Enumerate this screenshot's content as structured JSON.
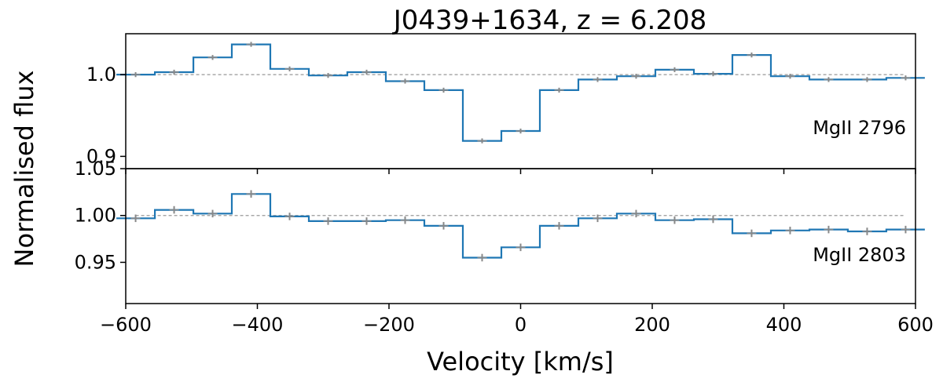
{
  "chart_data": {
    "type": "line",
    "title": "J0439+1634,   z = 6.208",
    "xlabel": "Velocity [km/s]",
    "ylabel": "Normalised flux",
    "xlim": [
      -600,
      600
    ],
    "x_ticks": [
      -600,
      -400,
      -200,
      0,
      200,
      400,
      600
    ],
    "x_tick_labels": [
      "−600",
      "−400",
      "−200",
      "0",
      "200",
      "400",
      "600"
    ],
    "bin_width_kms": 58.5,
    "step_color": "#1f77b4",
    "error_color": "#888888",
    "continuum_color": "#999999",
    "panels": [
      {
        "name": "MgII 2796",
        "label": "MgII 2796",
        "ylim": [
          0.885,
          1.05
        ],
        "y_ticks": [
          0.9,
          1.0
        ],
        "y_tick_labels": [
          "0.9",
          "1.0"
        ],
        "continuum": 1.0,
        "velocity": [
          -585,
          -526.5,
          -468,
          -409.5,
          -351,
          -292.5,
          -234,
          -175.5,
          -117,
          -58.5,
          0,
          58.5,
          117,
          175.5,
          234,
          292.5,
          351,
          409.5,
          468,
          526.5,
          585
        ],
        "flux": [
          1.0,
          1.003,
          1.021,
          1.037,
          1.007,
          0.999,
          1.003,
          0.992,
          0.981,
          0.919,
          0.931,
          0.981,
          0.994,
          0.998,
          1.006,
          1.001,
          1.024,
          0.998,
          0.994,
          0.994,
          0.996
        ],
        "error": [
          0.003,
          0.003,
          0.003,
          0.003,
          0.003,
          0.003,
          0.003,
          0.003,
          0.003,
          0.003,
          0.003,
          0.003,
          0.003,
          0.003,
          0.003,
          0.003,
          0.003,
          0.003,
          0.003,
          0.003,
          0.003
        ]
      },
      {
        "name": "MgII 2803",
        "label": "MgII 2803",
        "ylim": [
          0.906,
          1.05
        ],
        "y_ticks": [
          0.95,
          1.0,
          1.05
        ],
        "y_tick_labels": [
          "0.95",
          "1.00",
          "1.05"
        ],
        "continuum": 1.0,
        "velocity": [
          -585,
          -526.5,
          -468,
          -409.5,
          -351,
          -292.5,
          -234,
          -175.5,
          -117,
          -58.5,
          0,
          58.5,
          117,
          175.5,
          234,
          292.5,
          351,
          409.5,
          468,
          526.5,
          585
        ],
        "flux": [
          0.997,
          1.006,
          1.002,
          1.023,
          0.999,
          0.994,
          0.994,
          0.995,
          0.989,
          0.955,
          0.966,
          0.989,
          0.997,
          1.002,
          0.995,
          0.996,
          0.981,
          0.984,
          0.985,
          0.983,
          0.985
        ],
        "error": [
          0.004,
          0.004,
          0.004,
          0.004,
          0.004,
          0.004,
          0.004,
          0.004,
          0.004,
          0.004,
          0.004,
          0.004,
          0.004,
          0.004,
          0.004,
          0.004,
          0.004,
          0.004,
          0.004,
          0.004,
          0.004
        ]
      }
    ]
  }
}
